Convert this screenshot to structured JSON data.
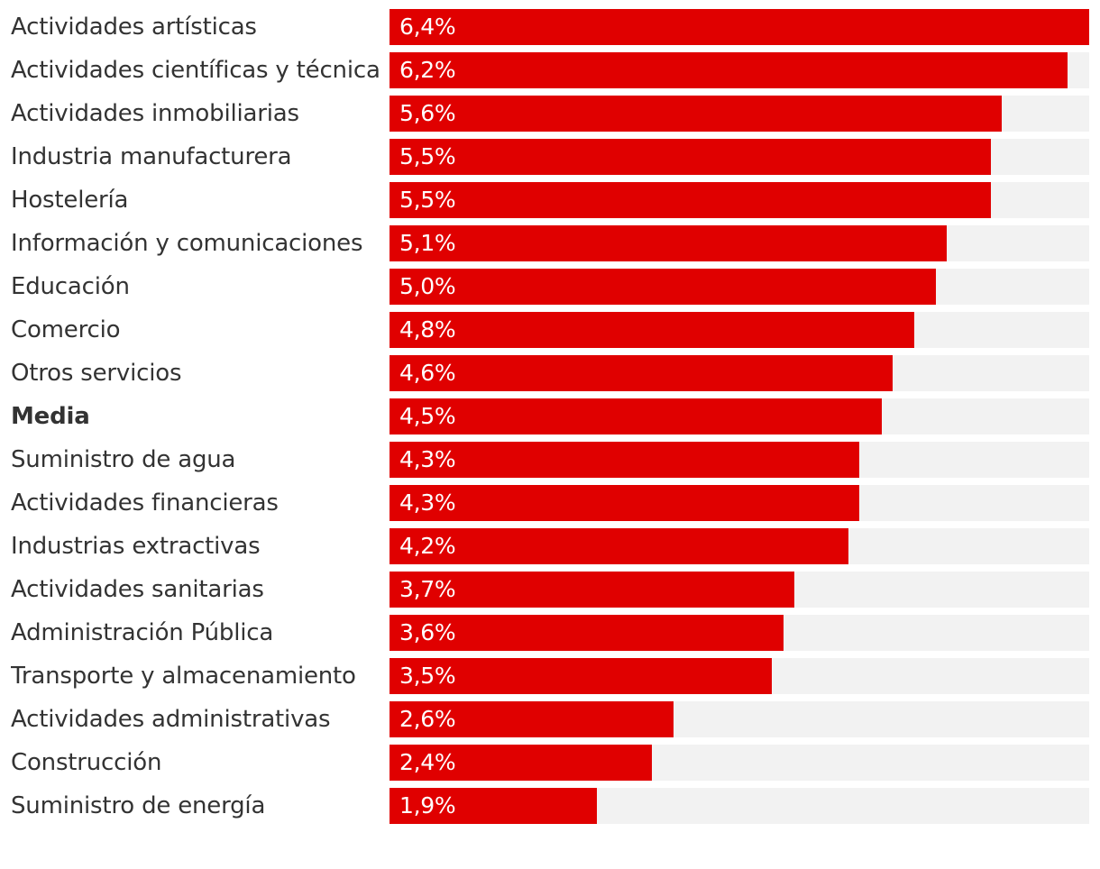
{
  "chart_data": {
    "type": "bar",
    "orientation": "horizontal",
    "title": "",
    "xlabel": "",
    "ylabel": "",
    "xlim": [
      0,
      6.4
    ],
    "grid": false,
    "bar_color": "#e00000",
    "track_color": "#f2f2f2",
    "highlight_category": "Media",
    "categories": [
      "Actividades artísticas",
      "Actividades científicas y técnicas",
      "Actividades inmobiliarias",
      "Industria manufacturera",
      "Hostelería",
      "Información y comunicaciones",
      "Educación",
      "Comercio",
      "Otros servicios",
      "Media",
      "Suministro de agua",
      "Actividades financieras",
      "Industrias extractivas",
      "Actividades sanitarias",
      "Administración Pública",
      "Transporte y almacenamiento",
      "Actividades administrativas",
      "Construcción",
      "Suministro de energía"
    ],
    "values": [
      6.4,
      6.2,
      5.6,
      5.5,
      5.5,
      5.1,
      5.0,
      4.8,
      4.6,
      4.5,
      4.3,
      4.3,
      4.2,
      3.7,
      3.6,
      3.5,
      2.6,
      2.4,
      1.9
    ],
    "value_labels": [
      "6,4%",
      "6,2%",
      "5,6%",
      "5,5%",
      "5,5%",
      "5,1%",
      "5,0%",
      "4,8%",
      "4,6%",
      "4,5%",
      "4,3%",
      "4,3%",
      "4,2%",
      "3,7%",
      "3,6%",
      "3,5%",
      "2,6%",
      "2,4%",
      "1,9%"
    ]
  }
}
